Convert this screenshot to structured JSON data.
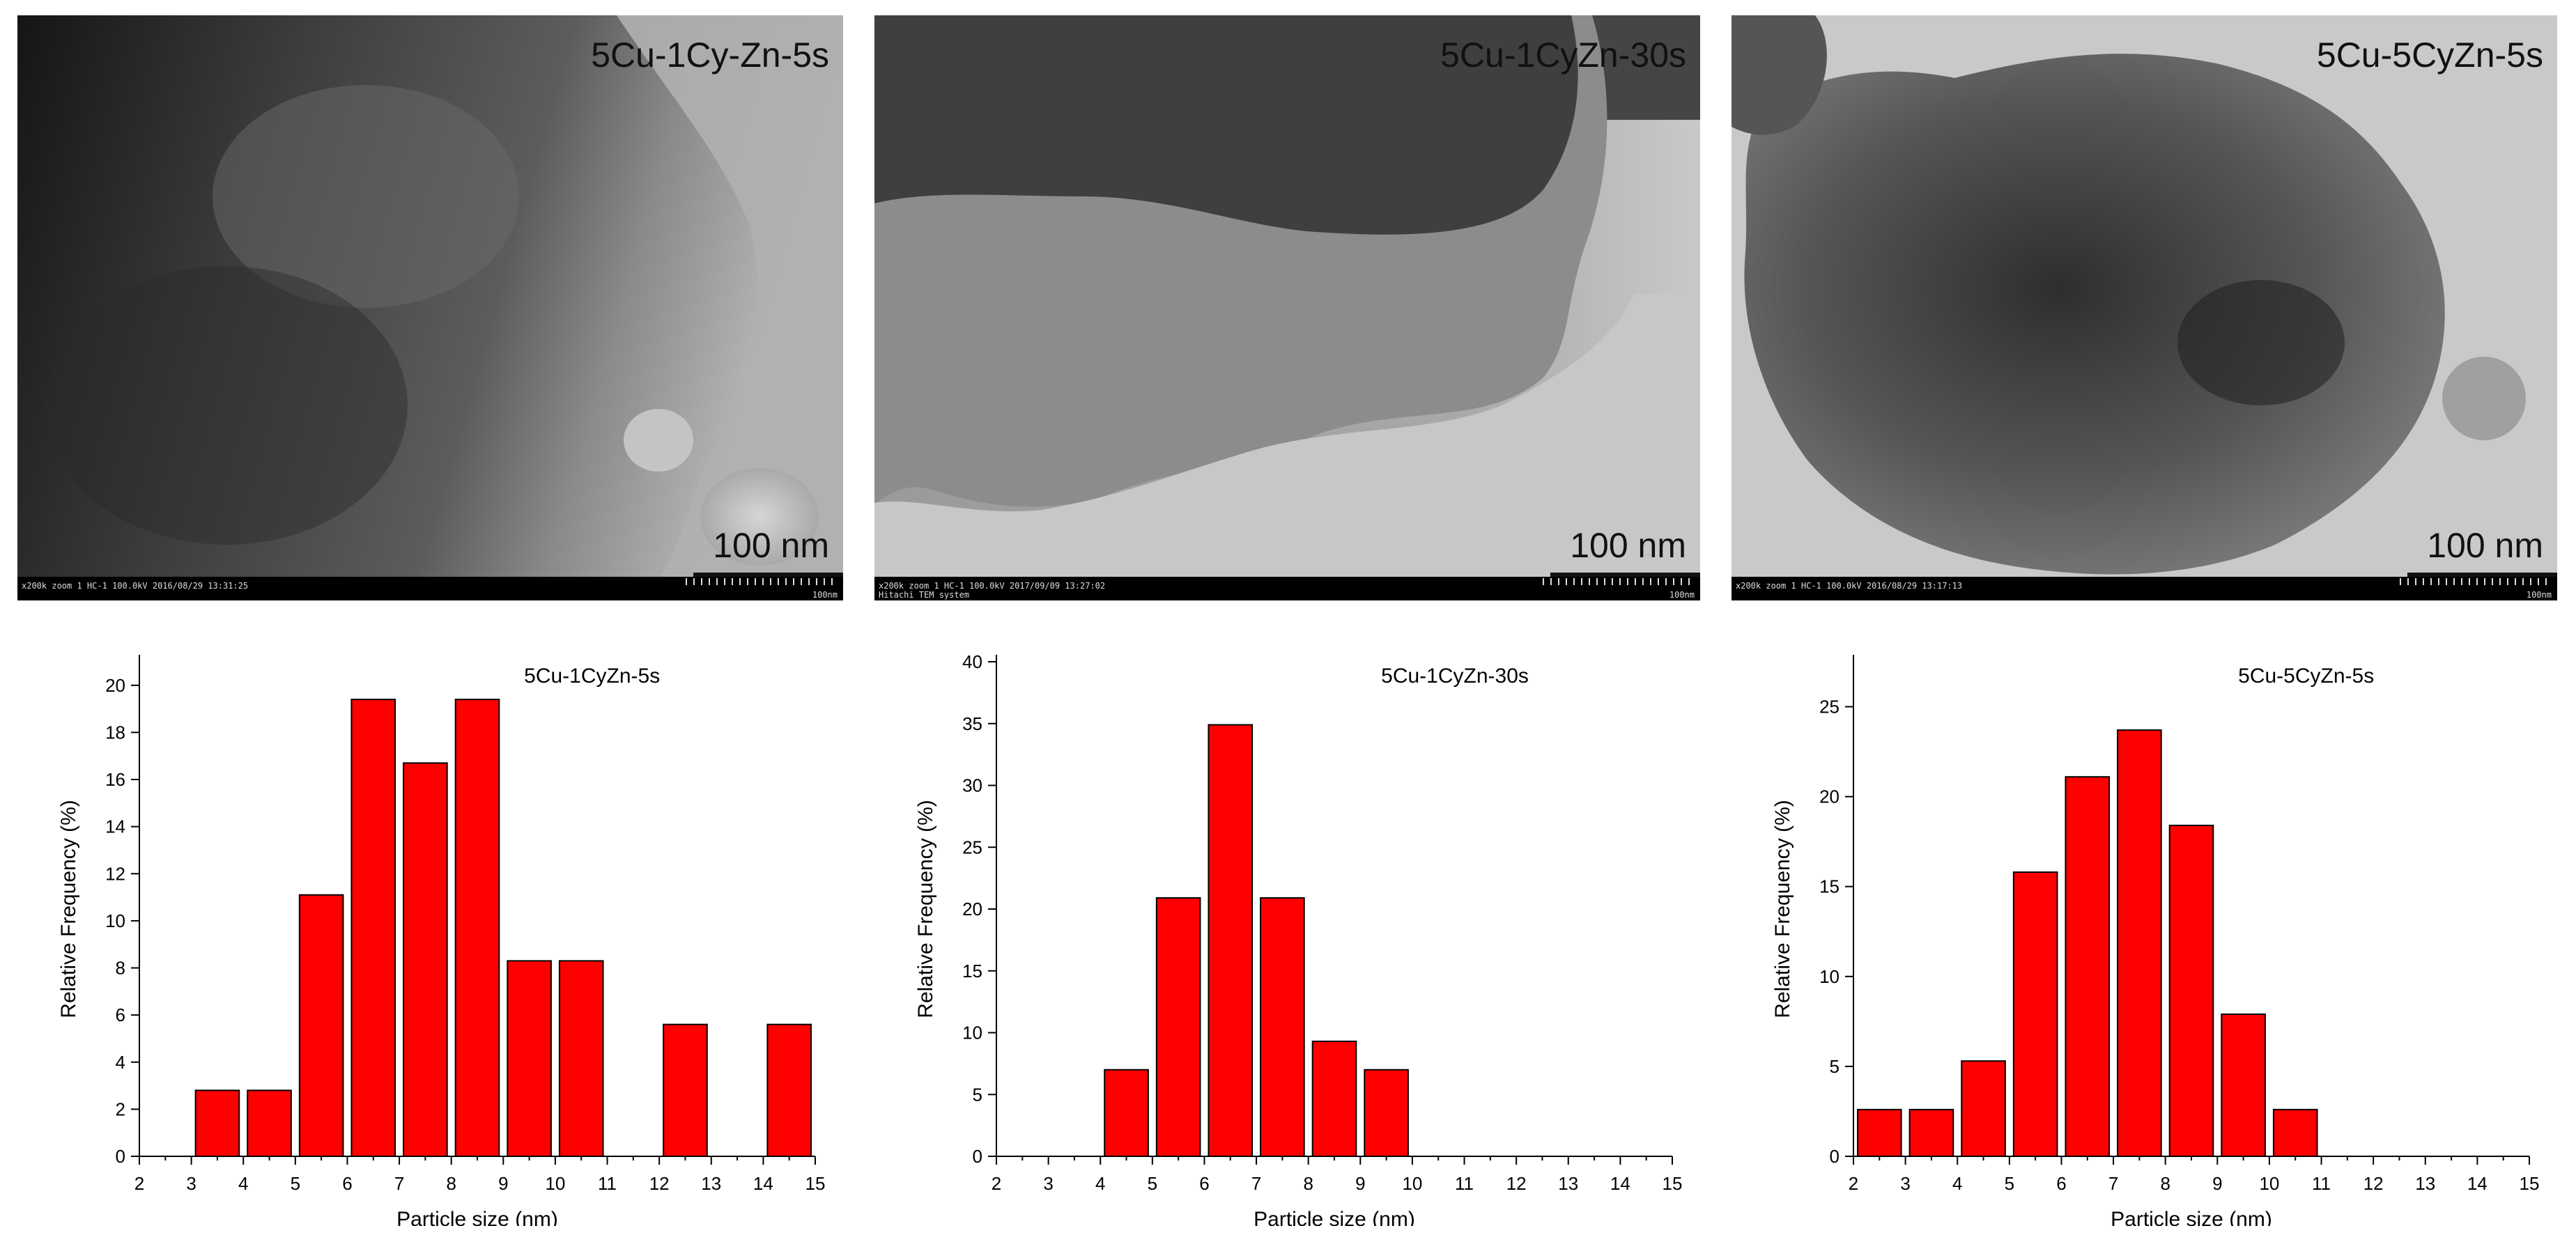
{
  "tem_panels": [
    {
      "label": "5Cu-1Cy-Zn-5s",
      "scale_label": "100 nm",
      "footer_text": "x200k zoom 1 HC-1 100.0kV 2016/08/29 13:31:25",
      "footer_text2": "",
      "footer_right": "100nm"
    },
    {
      "label": "5Cu-1CyZn-30s",
      "scale_label": "100 nm",
      "footer_text": "x200k zoom 1 HC-1 100.0kV 2017/09/09 13:27:02",
      "footer_text2": "Hitachi TEM system",
      "footer_right": "100nm"
    },
    {
      "label": "5Cu-5CyZn-5s",
      "scale_label": "100 nm",
      "footer_text": "x200k zoom 1 HC-1 100.0kV 2016/08/29 13:17:13",
      "footer_text2": "",
      "footer_right": "100nm"
    }
  ],
  "colors": {
    "bar_fill": "#ff0000",
    "bar_stroke": "#000000"
  },
  "chart_data": [
    {
      "type": "bar",
      "title": "5Cu-1CyZn-5s",
      "xlabel": "Particle size (nm)",
      "ylabel": "Relative Frequency (%)",
      "xlim": [
        2,
        15
      ],
      "ylim": [
        0,
        21
      ],
      "xticks": [
        2,
        3,
        4,
        5,
        6,
        7,
        8,
        9,
        10,
        11,
        12,
        13,
        14,
        15
      ],
      "yticks": [
        0,
        2,
        4,
        6,
        8,
        10,
        12,
        14,
        16,
        18,
        20
      ],
      "bins": [
        {
          "start": 3,
          "end": 4,
          "value": 2.8
        },
        {
          "start": 4,
          "end": 5,
          "value": 2.8
        },
        {
          "start": 5,
          "end": 6,
          "value": 11.1
        },
        {
          "start": 6,
          "end": 7,
          "value": 19.4
        },
        {
          "start": 7,
          "end": 8,
          "value": 16.7
        },
        {
          "start": 8,
          "end": 9,
          "value": 19.4
        },
        {
          "start": 9,
          "end": 10,
          "value": 8.3
        },
        {
          "start": 10,
          "end": 11,
          "value": 8.3
        },
        {
          "start": 12,
          "end": 13,
          "value": 5.6
        },
        {
          "start": 14,
          "end": 15,
          "value": 5.6
        }
      ]
    },
    {
      "type": "bar",
      "title": "5Cu-1CyZn-30s",
      "xlabel": "Particle size (nm)",
      "ylabel": "Relative Frequency (%)",
      "xlim": [
        2,
        15
      ],
      "ylim": [
        0,
        40
      ],
      "xticks": [
        2,
        3,
        4,
        5,
        6,
        7,
        8,
        9,
        10,
        11,
        12,
        13,
        14,
        15
      ],
      "yticks": [
        0,
        5,
        10,
        15,
        20,
        25,
        30,
        35,
        40
      ],
      "bins": [
        {
          "start": 4,
          "end": 5,
          "value": 7.0
        },
        {
          "start": 5,
          "end": 6,
          "value": 20.9
        },
        {
          "start": 6,
          "end": 7,
          "value": 34.9
        },
        {
          "start": 7,
          "end": 8,
          "value": 20.9
        },
        {
          "start": 8,
          "end": 9,
          "value": 9.3
        },
        {
          "start": 9,
          "end": 10,
          "value": 7.0
        }
      ]
    },
    {
      "type": "bar",
      "title": "5Cu-5CyZn-5s",
      "xlabel": "Particle size (nm)",
      "ylabel": "Relative Frequency (%)",
      "xlim": [
        2,
        15
      ],
      "ylim": [
        0,
        27.5
      ],
      "xticks": [
        2,
        3,
        4,
        5,
        6,
        7,
        8,
        9,
        10,
        11,
        12,
        13,
        14,
        15
      ],
      "yticks": [
        0,
        5,
        10,
        15,
        20,
        25
      ],
      "bins": [
        {
          "start": 2,
          "end": 3,
          "value": 2.6
        },
        {
          "start": 3,
          "end": 4,
          "value": 2.6
        },
        {
          "start": 4,
          "end": 5,
          "value": 5.3
        },
        {
          "start": 5,
          "end": 6,
          "value": 15.8
        },
        {
          "start": 6,
          "end": 7,
          "value": 21.1
        },
        {
          "start": 7,
          "end": 8,
          "value": 23.7
        },
        {
          "start": 8,
          "end": 9,
          "value": 18.4
        },
        {
          "start": 9,
          "end": 10,
          "value": 7.9
        },
        {
          "start": 10,
          "end": 11,
          "value": 2.6
        }
      ]
    }
  ]
}
